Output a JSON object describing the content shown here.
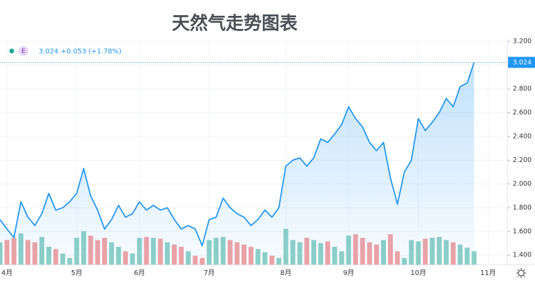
{
  "chart_data": {
    "type": "line",
    "title": "天然气走势图表",
    "badge": "E",
    "legend_text": "3.024 +0.053 (+1.78%)",
    "color": "#2196f3",
    "up_color": "#8fd0c6",
    "down_color": "#f2a3a3",
    "categories": [
      null,
      "4月",
      null,
      null,
      null,
      null,
      null,
      null,
      null,
      null,
      null,
      "5月",
      null,
      null,
      null,
      null,
      null,
      null,
      null,
      null,
      "6月",
      null,
      null,
      null,
      null,
      null,
      null,
      null,
      null,
      null,
      "7月",
      null,
      null,
      null,
      null,
      null,
      null,
      null,
      null,
      null,
      null,
      "8月",
      null,
      null,
      null,
      null,
      null,
      null,
      null,
      null,
      "9月",
      null,
      null,
      null,
      null,
      null,
      null,
      null,
      null,
      null,
      "10月",
      null,
      null,
      null,
      null,
      null,
      null,
      null,
      null,
      null,
      "11月"
    ],
    "values": [
      1.7,
      1.62,
      1.55,
      1.85,
      1.72,
      1.65,
      1.75,
      1.92,
      1.78,
      1.8,
      1.85,
      1.92,
      2.13,
      1.9,
      1.78,
      1.62,
      1.7,
      1.82,
      1.72,
      1.75,
      1.85,
      1.78,
      1.82,
      1.78,
      1.8,
      1.7,
      1.62,
      1.65,
      1.62,
      1.48,
      1.7,
      1.72,
      1.88,
      1.8,
      1.75,
      1.72,
      1.65,
      1.7,
      1.78,
      1.72,
      1.8,
      2.15,
      2.2,
      2.22,
      2.15,
      2.22,
      2.38,
      2.35,
      2.42,
      2.5,
      2.65,
      2.55,
      2.48,
      2.35,
      2.28,
      2.35,
      2.05,
      1.83,
      2.1,
      2.2,
      2.55,
      2.45,
      2.52,
      2.6,
      2.72,
      2.65,
      2.82,
      2.85,
      3.024,
      null,
      null
    ],
    "volume": [
      50,
      55,
      60,
      70,
      55,
      50,
      62,
      40,
      35,
      25,
      15,
      60,
      75,
      65,
      55,
      60,
      50,
      40,
      30,
      25,
      60,
      62,
      60,
      58,
      50,
      45,
      40,
      30,
      20,
      15,
      55,
      60,
      62,
      55,
      50,
      45,
      40,
      35,
      28,
      20,
      15,
      80,
      55,
      50,
      60,
      55,
      48,
      52,
      40,
      30,
      65,
      68,
      60,
      50,
      45,
      55,
      68,
      30,
      15,
      55,
      52,
      58,
      60,
      62,
      55,
      50,
      45,
      38,
      30,
      null,
      null
    ],
    "ylim": [
      1.32,
      3.23
    ],
    "yticks": [
      {
        "value": 1.4,
        "label": "1.400"
      },
      {
        "value": 1.6,
        "label": "1.600"
      },
      {
        "value": 1.8,
        "label": "1.800"
      },
      {
        "value": 2.0,
        "label": "2.000"
      },
      {
        "value": 2.2,
        "label": "2.200"
      },
      {
        "value": 2.4,
        "label": "2.400"
      },
      {
        "value": 2.6,
        "label": "2.600"
      },
      {
        "value": 2.8,
        "label": "2.800"
      },
      {
        "value": 3.0,
        "label": "3.000"
      },
      {
        "value": 3.2,
        "label": "3.200"
      }
    ],
    "grid": true
  }
}
